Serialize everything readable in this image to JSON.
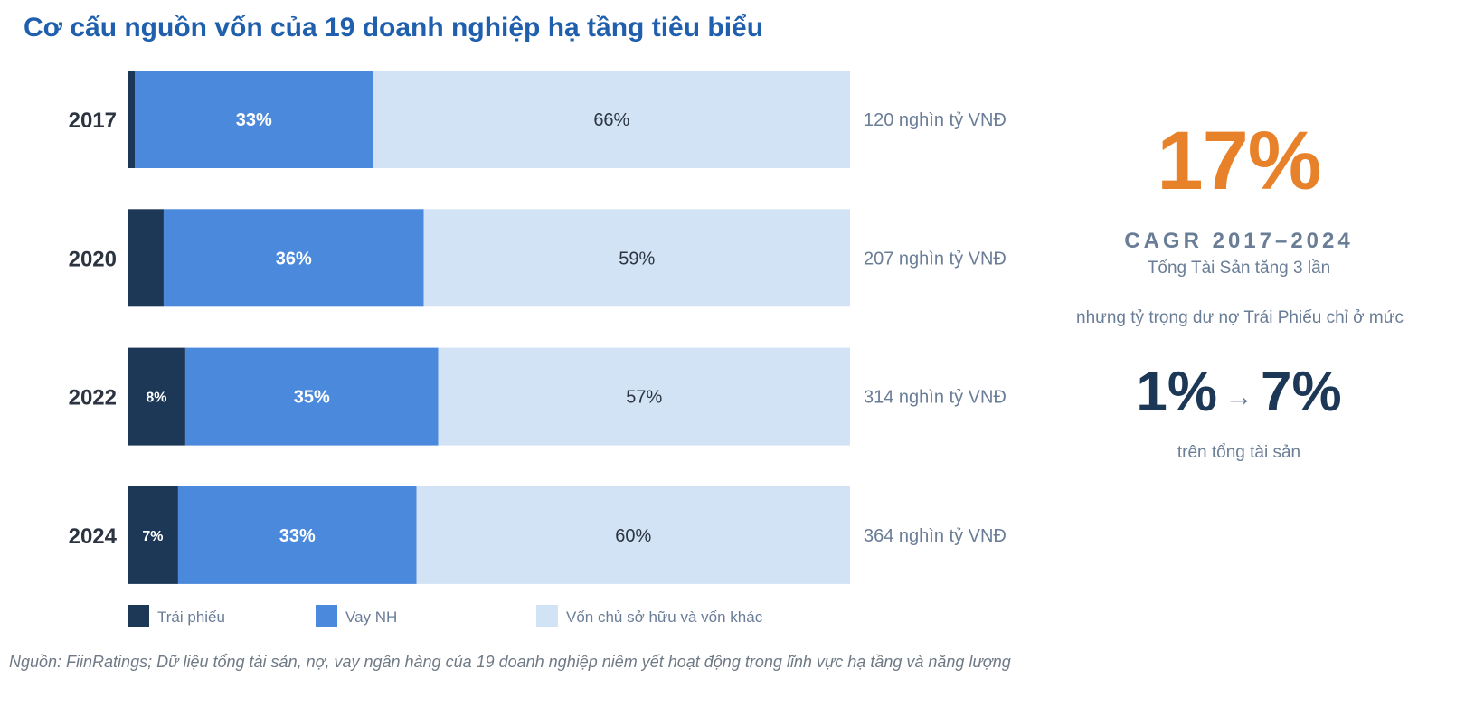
{
  "chart_data": {
    "type": "bar",
    "orientation": "horizontal",
    "stacked": true,
    "title": "Cơ cấu nguồn vốn của 19 doanh nghiệp hạ tầng tiêu biểu",
    "categories": [
      "2017",
      "2020",
      "2022",
      "2024"
    ],
    "series": [
      {
        "name": "Trái phiếu",
        "values": [
          1,
          5,
          8,
          7
        ],
        "labels": [
          "",
          "",
          "8%",
          "7%"
        ],
        "color": "#1d3757"
      },
      {
        "name": "Vay NH",
        "values": [
          33,
          36,
          35,
          33
        ],
        "labels": [
          "33%",
          "36%",
          "35%",
          "33%"
        ],
        "color": "#4a89dc"
      },
      {
        "name": "Vốn chủ sở hữu và vốn khác",
        "values": [
          66,
          59,
          57,
          60
        ],
        "labels": [
          "66%",
          "59%",
          "57%",
          "60%"
        ],
        "color": "#d3e3f6"
      }
    ],
    "totals": [
      "120 nghìn tỷ VNĐ",
      "207 nghìn tỷ VNĐ",
      "314 nghìn tỷ VNĐ",
      "364 nghìn tỷ VNĐ"
    ],
    "xlim": [
      0,
      100
    ],
    "grid": false,
    "legend_position": "bottom"
  },
  "kpi": {
    "cagr_value": "17%",
    "cagr_label": "CAGR 2017–2024",
    "line1": "Tổng Tài Sản tăng 3 lần",
    "line2": "nhưng tỷ trọng dư nợ Trái Phiếu chỉ ở mức",
    "range_from": "1%",
    "arrow": "→",
    "range_to": "7%",
    "line3": "trên tổng tài sản"
  },
  "source": "Nguồn: FiinRatings; Dữ liệu tổng tài sản, nợ, vay ngân hàng của 19 doanh nghiệp niêm yết hoạt động trong lĩnh vực hạ tầng và năng lượng"
}
